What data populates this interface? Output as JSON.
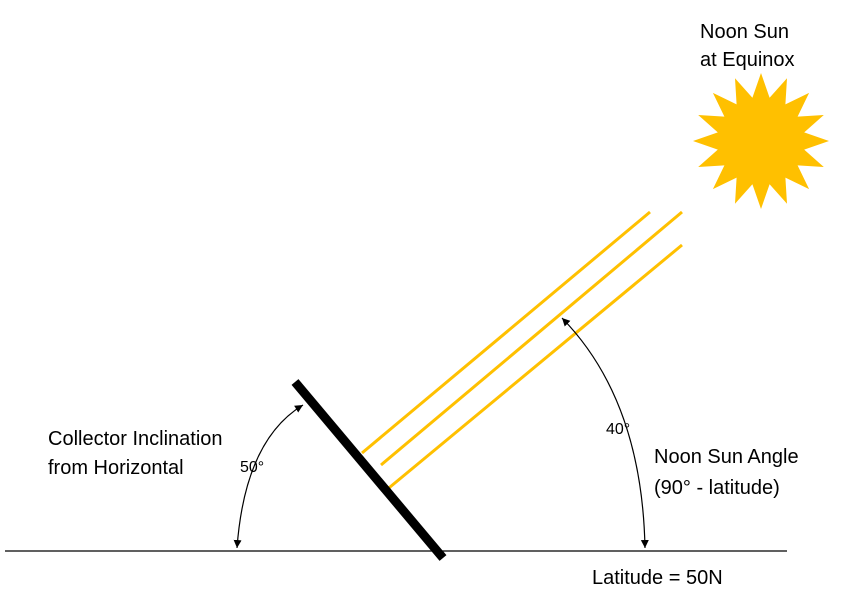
{
  "sun_label": {
    "line1": "Noon Sun",
    "line2": "at Equinox"
  },
  "collector_label": {
    "line1": "Collector Inclination",
    "line2": "from Horizontal"
  },
  "collector_angle": "50°",
  "sun_angle": "40°",
  "sun_angle_label": {
    "line1": "Noon Sun Angle",
    "line2": "(90° - latitude)"
  },
  "latitude_label": "Latitude = 50N"
}
